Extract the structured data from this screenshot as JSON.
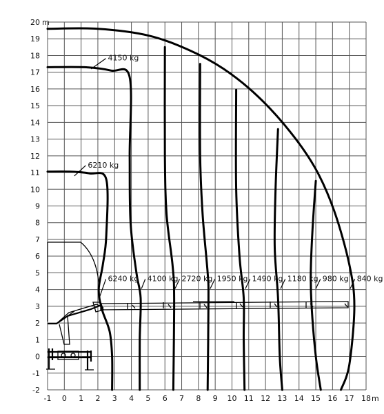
{
  "chart_data": {
    "type": "line",
    "title": "",
    "x_axis": {
      "unit": "m",
      "range": [
        -1,
        18
      ],
      "ticks": [
        -1,
        0,
        1,
        2,
        3,
        4,
        5,
        6,
        7,
        8,
        9,
        10,
        11,
        12,
        13,
        14,
        15,
        16,
        17,
        18
      ]
    },
    "y_axis": {
      "unit": "m",
      "range": [
        -2,
        20
      ],
      "ticks": [
        -2,
        -1,
        0,
        1,
        2,
        3,
        4,
        5,
        6,
        7,
        8,
        9,
        10,
        11,
        12,
        13,
        14,
        15,
        16,
        17,
        18,
        19,
        20
      ]
    },
    "grid": true,
    "load_labels": [
      {
        "text": "4150 kg",
        "at": [
          2.6,
          17.7
        ],
        "pointer": [
          1.6,
          17.2
        ]
      },
      {
        "text": "6210 kg",
        "at": [
          1.4,
          11.3
        ],
        "pointer": [
          0.6,
          10.8
        ]
      },
      {
        "text": "6240 kg",
        "at": [
          2.6,
          4.5
        ],
        "pointer": [
          2.05,
          3.4
        ]
      },
      {
        "text": "4100 kg",
        "at": [
          4.95,
          4.5
        ],
        "pointer": [
          4.6,
          4.05
        ]
      },
      {
        "text": "2720 kg",
        "at": [
          7.0,
          4.5
        ],
        "pointer": [
          6.6,
          4.05
        ]
      },
      {
        "text": "1950 kg",
        "at": [
          9.1,
          4.5
        ],
        "pointer": [
          8.7,
          4.05
        ]
      },
      {
        "text": "1490 kg",
        "at": [
          11.2,
          4.5
        ],
        "pointer": [
          10.8,
          4.05
        ]
      },
      {
        "text": "1180 kg",
        "at": [
          13.3,
          4.5
        ],
        "pointer": [
          12.9,
          4.05
        ]
      },
      {
        "text": "980 kg",
        "at": [
          15.4,
          4.5
        ],
        "pointer": [
          15.0,
          4.05
        ]
      },
      {
        "text": "840 kg",
        "at": [
          17.45,
          4.5
        ],
        "pointer": [
          17.05,
          4.05
        ]
      }
    ],
    "envelopes": [
      {
        "label": "outer-reach",
        "points": [
          [
            -1,
            19.6
          ],
          [
            2,
            19.6
          ],
          [
            5,
            19.2
          ],
          [
            7.5,
            18.3
          ],
          [
            9.5,
            17.2
          ],
          [
            11.5,
            15.6
          ],
          [
            13.5,
            13.4
          ],
          [
            15,
            11.2
          ],
          [
            16.1,
            8.7
          ],
          [
            17.0,
            5.5
          ],
          [
            17.3,
            3.0
          ],
          [
            17.0,
            -0.5
          ],
          [
            16.5,
            -2.0
          ]
        ]
      },
      {
        "label": "4150 kg",
        "points": [
          [
            -1,
            17.3
          ],
          [
            1.2,
            17.3
          ],
          [
            2.8,
            17.1
          ],
          [
            3.9,
            16.7
          ],
          [
            3.9,
            12.0
          ],
          [
            3.95,
            8.0
          ],
          [
            4.3,
            5.0
          ],
          [
            4.55,
            3.5
          ],
          [
            4.5,
            1.0
          ],
          [
            4.5,
            -2.0
          ]
        ]
      },
      {
        "label": "6210 kg",
        "points": [
          [
            -1,
            11.05
          ],
          [
            0.3,
            11.05
          ],
          [
            1.5,
            10.95
          ],
          [
            2.5,
            10.6
          ],
          [
            2.5,
            7.2
          ],
          [
            2.3,
            5.5
          ],
          [
            2.05,
            4.0
          ],
          [
            2.25,
            2.8
          ],
          [
            2.7,
            1.5
          ],
          [
            2.85,
            0
          ],
          [
            2.85,
            -2.0
          ]
        ]
      },
      {
        "label": "2720 kg",
        "points": [
          [
            6.0,
            18.5
          ],
          [
            6.0,
            12.0
          ],
          [
            6.1,
            8.5
          ],
          [
            6.45,
            5.5
          ],
          [
            6.55,
            3.5
          ],
          [
            6.5,
            -2.0
          ]
        ]
      },
      {
        "label": "1950 kg",
        "points": [
          [
            8.1,
            17.5
          ],
          [
            8.1,
            12.0
          ],
          [
            8.25,
            8.5
          ],
          [
            8.55,
            5.0
          ],
          [
            8.6,
            3.5
          ],
          [
            8.55,
            -2.0
          ]
        ]
      },
      {
        "label": "1490 kg",
        "points": [
          [
            10.25,
            15.95
          ],
          [
            10.25,
            10.0
          ],
          [
            10.45,
            6.0
          ],
          [
            10.7,
            3.5
          ],
          [
            10.7,
            1.0
          ],
          [
            10.75,
            -2.0
          ]
        ]
      },
      {
        "label": "1180 kg",
        "points": [
          [
            12.75,
            13.6
          ],
          [
            12.6,
            10.0
          ],
          [
            12.55,
            6.5
          ],
          [
            12.75,
            3.5
          ],
          [
            12.85,
            0
          ],
          [
            13.0,
            -2.0
          ]
        ]
      },
      {
        "label": "980 kg",
        "points": [
          [
            15.0,
            10.5
          ],
          [
            14.8,
            7.5
          ],
          [
            14.7,
            5.0
          ],
          [
            14.75,
            3.0
          ],
          [
            15.0,
            0
          ],
          [
            15.3,
            -2.0
          ]
        ]
      }
    ]
  }
}
